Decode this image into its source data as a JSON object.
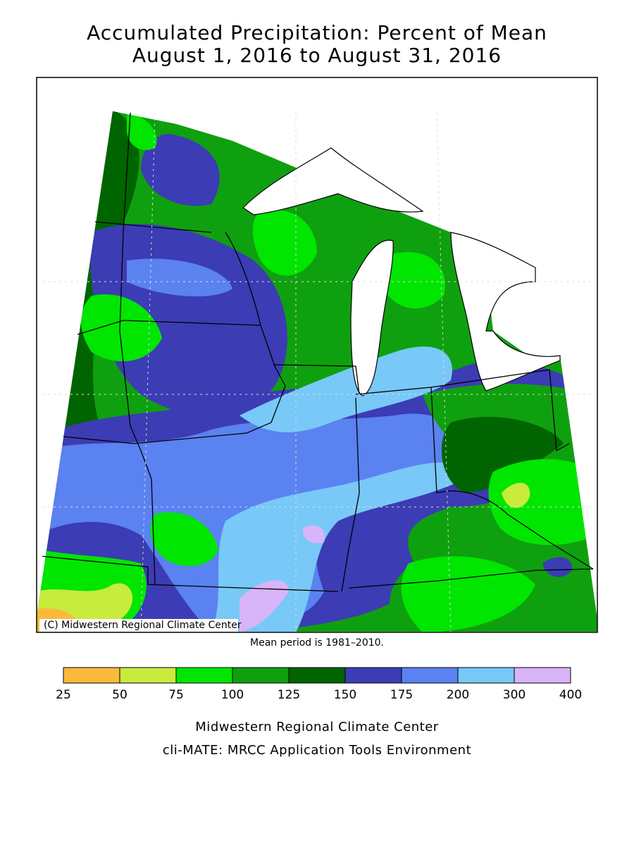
{
  "title": [
    "Accumulated Precipitation: Percent of Mean",
    "August 1, 2016 to August 31, 2016"
  ],
  "map": {
    "copyright": "(C) Midwestern Regional Climate Center",
    "note": "Mean period is 1981–2010."
  },
  "legend": {
    "bins": [
      25,
      50,
      75,
      100,
      125,
      150,
      175,
      200,
      300,
      400
    ],
    "colors": [
      "#fbb93c",
      "#c8eb3c",
      "#00e600",
      "#0fa00f",
      "#006400",
      "#3c3cb4",
      "#5a82f0",
      "#78c8f8",
      "#d8b4f8"
    ]
  },
  "footer": [
    "Midwestern Regional Climate Center",
    "cli-MATE: MRCC Application Tools Environment"
  ]
}
